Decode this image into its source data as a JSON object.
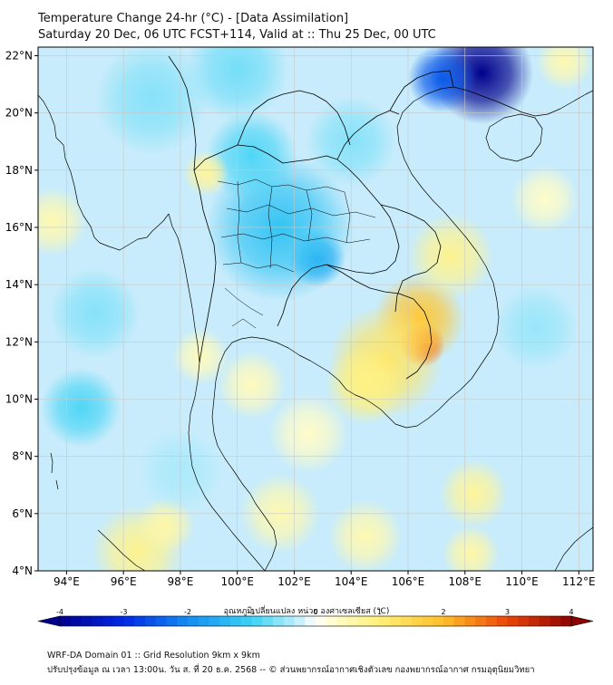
{
  "header": {
    "title_line1": "Temperature Change 24-hr (°C) - [Data Assimilation]",
    "title_line2": "Saturday 20 Dec, 06 UTC FCST+114, Valid at :: Thu 25 Dec, 00 UTC"
  },
  "map": {
    "lat_labels": [
      "22°N",
      "20°N",
      "18°N",
      "16°N",
      "14°N",
      "12°N",
      "10°N",
      "8°N",
      "6°N",
      "4°N"
    ],
    "lat_values": [
      22,
      20,
      18,
      16,
      14,
      12,
      10,
      8,
      6,
      4
    ],
    "lon_labels": [
      "94°E",
      "96°E",
      "98°E",
      "100°E",
      "102°E",
      "104°E",
      "106°E",
      "108°E",
      "110°E",
      "112°E"
    ],
    "lon_values": [
      94,
      96,
      98,
      100,
      102,
      104,
      106,
      108,
      110,
      112
    ],
    "extent": {
      "lon_min": 93,
      "lon_max": 112.5,
      "lat_min": 4,
      "lat_max": 22.3
    },
    "field_blobs": [
      {
        "lon": 108.6,
        "lat": 21.4,
        "r": 1.8,
        "v": -4.0
      },
      {
        "lon": 107.2,
        "lat": 21.2,
        "r": 1.2,
        "v": -2.5
      },
      {
        "lon": 106.5,
        "lat": 11.9,
        "r": 0.8,
        "v": 3.0
      },
      {
        "lon": 106.4,
        "lat": 12.8,
        "r": 1.6,
        "v": 1.8
      },
      {
        "lon": 105.2,
        "lat": 11.3,
        "r": 2.0,
        "v": 1.2
      },
      {
        "lon": 104.5,
        "lat": 10.5,
        "r": 1.4,
        "v": 0.9
      },
      {
        "lon": 107.5,
        "lat": 15.0,
        "r": 1.5,
        "v": 0.8
      },
      {
        "lon": 102.8,
        "lat": 14.9,
        "r": 1.0,
        "v": -1.6
      },
      {
        "lon": 101.5,
        "lat": 16.0,
        "r": 2.6,
        "v": -1.2
      },
      {
        "lon": 100.5,
        "lat": 18.5,
        "r": 1.6,
        "v": -0.9
      },
      {
        "lon": 98.9,
        "lat": 17.9,
        "r": 0.8,
        "v": 0.7
      },
      {
        "lon": 93.5,
        "lat": 16.2,
        "r": 1.2,
        "v": 0.5
      },
      {
        "lon": 100.0,
        "lat": 21.5,
        "r": 1.8,
        "v": -0.7
      },
      {
        "lon": 97.0,
        "lat": 20.5,
        "r": 2.0,
        "v": -0.6
      },
      {
        "lon": 94.5,
        "lat": 9.7,
        "r": 1.4,
        "v": -0.9
      },
      {
        "lon": 95.0,
        "lat": 13.0,
        "r": 1.6,
        "v": -0.6
      },
      {
        "lon": 98.7,
        "lat": 11.5,
        "r": 1.0,
        "v": 0.4
      },
      {
        "lon": 100.5,
        "lat": 10.5,
        "r": 1.2,
        "v": 0.4
      },
      {
        "lon": 102.5,
        "lat": 8.8,
        "r": 1.4,
        "v": 0.3
      },
      {
        "lon": 101.5,
        "lat": 6.0,
        "r": 1.4,
        "v": 0.5
      },
      {
        "lon": 96.5,
        "lat": 4.7,
        "r": 1.6,
        "v": 0.8
      },
      {
        "lon": 97.5,
        "lat": 5.6,
        "r": 1.0,
        "v": 0.6
      },
      {
        "lon": 104.5,
        "lat": 5.2,
        "r": 1.3,
        "v": 0.5
      },
      {
        "lon": 108.3,
        "lat": 6.7,
        "r": 1.2,
        "v": 0.7
      },
      {
        "lon": 108.2,
        "lat": 4.6,
        "r": 1.0,
        "v": 0.6
      },
      {
        "lon": 111.5,
        "lat": 21.8,
        "r": 1.0,
        "v": 0.5
      },
      {
        "lon": 110.5,
        "lat": 12.5,
        "r": 1.5,
        "v": -0.5
      },
      {
        "lon": 110.8,
        "lat": 17.0,
        "r": 1.2,
        "v": 0.3
      },
      {
        "lon": 104.0,
        "lat": 19.0,
        "r": 1.6,
        "v": -0.6
      },
      {
        "lon": 98.0,
        "lat": 7.5,
        "r": 1.5,
        "v": -0.4
      }
    ]
  },
  "colorbar": {
    "label": "อุณหภูมิเปลี่ยนแปลง หน่วย องศาเซลเซียส (°C)",
    "ticks": [
      "-4",
      "-3",
      "-2",
      "-1",
      "0",
      "1",
      "2",
      "3",
      "4"
    ],
    "tick_values": [
      -4,
      -3,
      -2,
      -1,
      0,
      1,
      2,
      3,
      4
    ],
    "min": -4,
    "max": 4,
    "n_colors": 48
  },
  "footer": {
    "line1": "WRF-DA Domain 01 :: Grid Resolution 9km x 9km",
    "line2": "ปรับปรุงข้อมูล ณ เวลา 13:00น. วัน ส. ที่ 20 ธ.ค. 2568 -- © ส่วนพยากรณ์อากาศเชิงตัวเลข กองพยากรณ์อากาศ กรมอุตุนิยมวิทยา"
  },
  "colors": {
    "land_border": "#000000",
    "grid": "#c8c8c8",
    "frame": "#000000"
  }
}
